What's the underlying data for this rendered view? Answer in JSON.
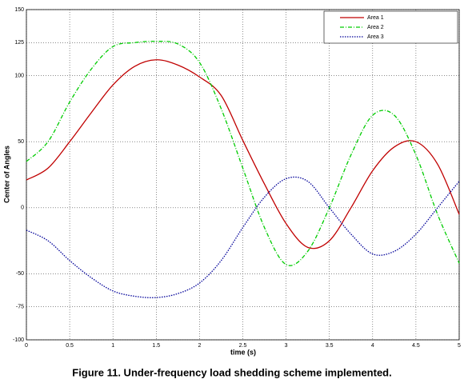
{
  "chart_data": {
    "type": "line",
    "caption": "Figure 11. Under-frequency load shedding scheme implemented.",
    "x_label": "time (s)",
    "y_label": "Center of Angles",
    "x": [
      0,
      0.25,
      0.5,
      0.75,
      1,
      1.25,
      1.5,
      1.75,
      2,
      2.25,
      2.5,
      2.75,
      3,
      3.25,
      3.5,
      3.75,
      4,
      4.25,
      4.5,
      4.75,
      5
    ],
    "series": [
      {
        "name": "Area 1",
        "color": "#c00000",
        "line_style": "solid",
        "values": [
          21,
          30,
          50,
          72,
          93,
          107,
          112,
          108,
          99,
          85,
          51,
          18,
          -12,
          -30,
          -25,
          0,
          28,
          46,
          50,
          33,
          -5
        ]
      },
      {
        "name": "Area 2",
        "color": "#00cc00",
        "line_style": "dashdot",
        "values": [
          35,
          50,
          80,
          105,
          122,
          125,
          126,
          124,
          110,
          75,
          30,
          -15,
          -43,
          -33,
          0,
          40,
          70,
          70,
          40,
          -5,
          -42
        ]
      },
      {
        "name": "Area 3",
        "color": "#000099",
        "line_style": "dotted",
        "values": [
          -17,
          -25,
          -40,
          -53,
          -63,
          -67,
          -68,
          -65,
          -57,
          -40,
          -15,
          8,
          22,
          20,
          0,
          -20,
          -35,
          -33,
          -20,
          0,
          20
        ]
      }
    ],
    "xlim": [
      0,
      5
    ],
    "xticks": [
      0,
      0.5,
      1,
      1.5,
      2,
      2.5,
      3,
      3.5,
      4,
      4.5,
      5
    ],
    "ylim": [
      -100,
      150
    ],
    "yticks": [
      -100,
      -75,
      -50,
      0,
      50,
      100,
      125,
      150
    ],
    "grid": true,
    "legend": "top-right"
  }
}
